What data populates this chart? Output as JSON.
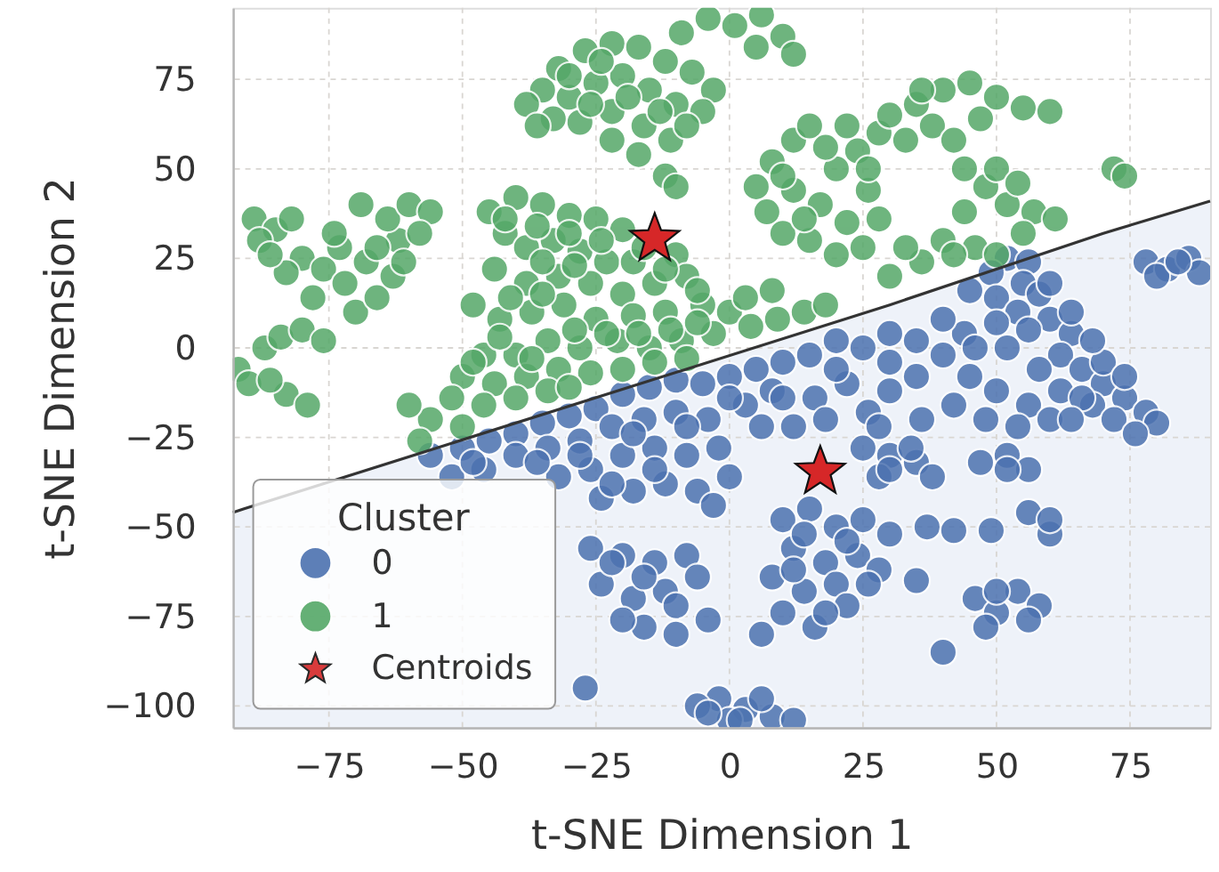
{
  "chart_data": {
    "type": "scatter",
    "xlabel": "t-SNE Dimension 1",
    "ylabel": "t-SNE Dimension 2",
    "legend_title": "Cluster",
    "legend": "bottom left",
    "grid": true,
    "xlim": [
      -93,
      90
    ],
    "ylim": [
      -106,
      95
    ],
    "xticks": [
      -75,
      -50,
      -25,
      0,
      25,
      50,
      75
    ],
    "yticks": [
      -100,
      -75,
      -50,
      -25,
      0,
      25,
      50,
      75
    ],
    "series": [
      {
        "type": "line",
        "color": "#333333",
        "x": [
          -93,
          -91,
          30,
          70,
          90
        ],
        "values": [
          -46,
          -45,
          12,
          32,
          41
        ],
        "lower": [
          -106,
          -106,
          -106,
          -106,
          -106
        ],
        "upper": [
          -46,
          -45,
          12,
          32,
          41
        ]
      },
      {
        "name": "0",
        "color": "#4c72b0",
        "marker": "circle",
        "x": [
          78,
          82,
          86,
          88,
          80,
          52,
          56,
          49,
          45,
          55,
          50,
          54,
          58,
          60,
          64,
          56,
          50,
          62,
          66,
          70,
          74,
          68,
          72,
          78,
          80,
          62,
          58,
          52,
          44,
          40,
          35,
          30,
          25,
          20,
          15,
          10,
          5,
          0,
          35,
          30,
          22,
          16,
          8,
          45,
          50,
          42,
          56,
          60,
          26,
          36,
          3,
          12,
          -56,
          -50,
          -45,
          -40,
          -35,
          -30,
          -25,
          -20,
          -15,
          -10,
          -5,
          -52,
          -46,
          -40,
          -34,
          -28,
          -22,
          -16,
          -10,
          -4,
          -32,
          -26,
          -20,
          -14,
          -8,
          -2,
          -24,
          -18,
          -12,
          -6,
          0,
          -3,
          25,
          30,
          35,
          38,
          28,
          47,
          52,
          56,
          10,
          15,
          20,
          25,
          30,
          12,
          18,
          24,
          8,
          14,
          20,
          28,
          10,
          16,
          6,
          22,
          37,
          42,
          49,
          56,
          60,
          35,
          46,
          50,
          54,
          58,
          48,
          40,
          -2,
          3,
          8,
          12,
          -6,
          0,
          -27,
          -26,
          -20,
          -14,
          -8,
          -24,
          -18,
          -12,
          -6,
          -16,
          -10,
          -4,
          40,
          46,
          30,
          20,
          10,
          0,
          -8,
          -18,
          -28,
          -36,
          -48,
          66,
          70,
          74,
          64,
          54,
          48,
          28,
          18,
          6,
          60,
          64,
          68,
          76,
          84,
          -14,
          -22,
          14,
          22,
          26,
          12,
          18,
          -22,
          -16,
          -10,
          -20,
          50,
          56,
          60,
          30,
          34,
          52,
          2,
          6,
          -4
        ],
        "values": [
          24,
          22,
          25,
          21,
          20,
          25,
          24,
          21,
          16,
          18,
          14,
          10,
          15,
          8,
          4,
          5,
          7,
          -2,
          -6,
          -10,
          -14,
          -16,
          -20,
          -18,
          -21,
          -12,
          -6,
          0,
          4,
          -2,
          2,
          4,
          0,
          2,
          -2,
          -4,
          -6,
          -8,
          -8,
          -12,
          -10,
          -14,
          -12,
          -8,
          -12,
          -16,
          -16,
          -20,
          -18,
          -20,
          -16,
          -22,
          -30,
          -28,
          -26,
          -24,
          -21,
          -19,
          -17,
          -13,
          -11,
          -9,
          -10,
          -36,
          -34,
          -30,
          -28,
          -26,
          -22,
          -20,
          -18,
          -20,
          -36,
          -34,
          -30,
          -28,
          -30,
          -28,
          -42,
          -40,
          -38,
          -40,
          -36,
          -44,
          -28,
          -30,
          -32,
          -36,
          -36,
          -32,
          -30,
          -34,
          -48,
          -45,
          -50,
          -48,
          -52,
          -56,
          -60,
          -58,
          -64,
          -68,
          -66,
          -62,
          -74,
          -78,
          -80,
          -72,
          -50,
          -51,
          -51,
          -46,
          -52,
          -65,
          -70,
          -74,
          -68,
          -72,
          -78,
          -85,
          -98,
          -101,
          -103,
          -104,
          -100,
          -104,
          -95,
          -56,
          -58,
          -60,
          -58,
          -66,
          -70,
          -68,
          -64,
          -78,
          -80,
          -76,
          8,
          0,
          -4,
          -6,
          -14,
          -14,
          -22,
          -24,
          -30,
          -32,
          -32,
          -14,
          -4,
          -8,
          -20,
          -22,
          -20,
          -22,
          -20,
          -22,
          18,
          10,
          2,
          -24,
          24,
          -34,
          -38,
          -52,
          -54,
          -66,
          -62,
          -74,
          -60,
          -64,
          -72,
          -76,
          -68,
          -76,
          -48,
          -34,
          -28,
          -34,
          -104,
          -98,
          -102
        ]
      },
      {
        "name": "1",
        "color": "#55a868",
        "marker": "circle",
        "x": [
          -35,
          -38,
          -32,
          -27,
          -22,
          -17,
          -12,
          -7,
          -3,
          -5,
          -10,
          -15,
          -20,
          -25,
          -30,
          -28,
          -22,
          -16,
          -11,
          -17,
          -22,
          -8,
          -33,
          -9,
          -4,
          1,
          6,
          10,
          5,
          12,
          -12,
          -10,
          -89,
          -85,
          -88,
          -80,
          -76,
          -83,
          -78,
          -72,
          -70,
          -66,
          -68,
          -63,
          -62,
          -64,
          -60,
          -56,
          -58,
          -73,
          -86,
          -69,
          -92,
          -90,
          -87,
          -84,
          -80,
          -76,
          -83,
          -79,
          -86,
          -45,
          -40,
          -35,
          -30,
          -25,
          -20,
          -42,
          -38,
          -33,
          -28,
          -23,
          -18,
          -10,
          -8,
          -14,
          -20,
          -26,
          -32,
          -38,
          -44,
          -48,
          -43,
          -37,
          -31,
          -25,
          -18,
          -12,
          -5,
          0,
          -3,
          -9,
          -15,
          -21,
          -28,
          -34,
          -40,
          -46,
          -50,
          -44,
          -38,
          -32,
          -26,
          -20,
          -14,
          -8,
          -52,
          -46,
          -40,
          -34,
          -56,
          -50,
          -60,
          -58,
          4,
          9,
          14,
          18,
          3,
          8,
          5,
          7,
          10,
          8,
          12,
          15,
          12,
          17,
          15,
          20,
          22,
          20,
          24,
          26,
          28,
          25,
          30,
          35,
          40,
          45,
          50,
          55,
          47,
          38,
          42,
          33,
          44,
          48,
          52,
          57,
          61,
          44,
          40,
          36,
          30,
          46,
          50,
          33,
          72,
          74,
          -30,
          -24,
          -19,
          -13,
          -26,
          -36,
          -42,
          -36,
          -30,
          -24,
          -16,
          -12,
          -6,
          -35,
          -29,
          -41,
          -35,
          -29,
          -23,
          -17,
          -11,
          -6,
          -43,
          -48,
          -37,
          -30,
          10,
          18,
          22,
          14,
          26,
          60,
          36,
          28,
          50,
          54,
          42,
          55,
          -82,
          -74,
          -66,
          -61
        ],
        "values": [
          72,
          68,
          78,
          83,
          85,
          84,
          80,
          77,
          72,
          66,
          68,
          72,
          76,
          74,
          70,
          63,
          66,
          62,
          58,
          54,
          58,
          62,
          64,
          88,
          92,
          90,
          93,
          87,
          84,
          82,
          48,
          45,
          36,
          33,
          30,
          25,
          22,
          21,
          14,
          18,
          10,
          14,
          24,
          20,
          30,
          36,
          40,
          38,
          32,
          28,
          26,
          40,
          -6,
          -10,
          0,
          3,
          5,
          2,
          -13,
          -16,
          -9,
          38,
          42,
          40,
          37,
          36,
          33,
          32,
          28,
          30,
          27,
          24,
          24,
          26,
          20,
          18,
          15,
          18,
          20,
          18,
          22,
          12,
          8,
          10,
          12,
          8,
          9,
          10,
          12,
          10,
          4,
          2,
          0,
          2,
          0,
          2,
          -2,
          -2,
          -8,
          -10,
          -8,
          -6,
          -7,
          -6,
          -4,
          -3,
          -14,
          -16,
          -14,
          -12,
          -20,
          -22,
          -16,
          -26,
          6,
          8,
          10,
          12,
          14,
          16,
          45,
          38,
          32,
          52,
          58,
          62,
          44,
          40,
          30,
          26,
          35,
          50,
          55,
          44,
          60,
          28,
          65,
          68,
          72,
          74,
          70,
          67,
          64,
          62,
          58,
          58,
          50,
          45,
          40,
          38,
          36,
          38,
          30,
          24,
          20,
          28,
          26,
          28,
          50,
          48,
          76,
          80,
          70,
          66,
          68,
          62,
          36,
          34,
          32,
          30,
          28,
          22,
          16,
          24,
          23,
          14,
          15,
          5,
          4,
          4,
          5,
          7,
          3,
          -4,
          -3,
          -11,
          48,
          56,
          62,
          36,
          50,
          66,
          72,
          36,
          50,
          46,
          26,
          32,
          36,
          32,
          28,
          24
        ]
      },
      {
        "name": "Centroids",
        "color": "#d62728",
        "marker": "star",
        "x": [
          -14,
          17
        ],
        "values": [
          31,
          -34
        ]
      }
    ]
  }
}
